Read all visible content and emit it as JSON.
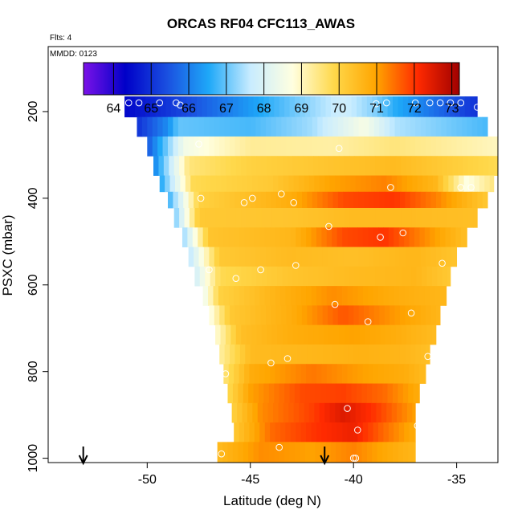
{
  "title": "ORCAS RF04 CFC113_AWAS",
  "notes": {
    "flights": "Flts: 4",
    "mmdd": "MMDD: 0123"
  },
  "chart_data": {
    "type": "heatmap",
    "title": "ORCAS RF04 CFC113_AWAS",
    "xlabel": "Latitude (deg N)",
    "ylabel": "PSXC (mbar)",
    "xlim": [
      -54.8,
      -33
    ],
    "ylim": [
      1010,
      50
    ],
    "xticks": [
      -50,
      -45,
      -40,
      -35
    ],
    "yticks": [
      200,
      400,
      600,
      800,
      1000
    ],
    "colorbar": {
      "min": 63.2,
      "max": 73.2,
      "ticks": [
        64,
        65,
        66,
        67,
        68,
        69,
        70,
        71,
        72,
        73
      ],
      "stops": [
        "#7b12e8",
        "#0000c8",
        "#1a4fe0",
        "#1ea8f8",
        "#c8ecff",
        "#ffffe0",
        "#ffd84a",
        "#ffa500",
        "#ff2a00",
        "#a00000"
      ]
    },
    "pressure_bands": [
      {
        "p": 190,
        "lat_min": -51.1,
        "lat_max": -34.0,
        "profile": [
          [
            -51.1,
            64.4
          ],
          [
            -48.0,
            65.4
          ],
          [
            -44.0,
            66.7
          ],
          [
            -40.5,
            67.8
          ],
          [
            -39.0,
            67.2
          ],
          [
            -38.0,
            66.6
          ],
          [
            -34.0,
            65.0
          ]
        ]
      },
      {
        "p": 235,
        "lat_min": -50.5,
        "lat_max": -33.5,
        "profile": [
          [
            -50.5,
            65.0
          ],
          [
            -49.0,
            66.2
          ],
          [
            -48.5,
            67.0
          ],
          [
            -45.0,
            66.8
          ],
          [
            -42.0,
            67.4
          ],
          [
            -39.5,
            68.6
          ],
          [
            -38.0,
            67.5
          ],
          [
            -33.5,
            66.8
          ]
        ]
      },
      {
        "p": 280,
        "lat_min": -50.0,
        "lat_max": -33.0,
        "profile": [
          [
            -50.0,
            65.5
          ],
          [
            -48.2,
            68.5
          ],
          [
            -45.0,
            69.3
          ],
          [
            -41.0,
            69.2
          ],
          [
            -38.0,
            69.5
          ],
          [
            -33.0,
            69.0
          ]
        ]
      },
      {
        "p": 325,
        "lat_min": -49.7,
        "lat_max": -33.0,
        "profile": [
          [
            -49.7,
            66.0
          ],
          [
            -48.0,
            69.5
          ],
          [
            -45.0,
            70.0
          ],
          [
            -41.0,
            70.3
          ],
          [
            -38.0,
            70.5
          ],
          [
            -33.0,
            69.8
          ]
        ]
      },
      {
        "p": 370,
        "lat_min": -49.4,
        "lat_max": -33.2,
        "profile": [
          [
            -49.4,
            66.4
          ],
          [
            -47.8,
            69.8
          ],
          [
            -44.0,
            70.2
          ],
          [
            -41.0,
            71.0
          ],
          [
            -38.5,
            71.3
          ],
          [
            -36.0,
            70.6
          ],
          [
            -34.5,
            68.7
          ],
          [
            -33.2,
            69.5
          ]
        ]
      },
      {
        "p": 400,
        "lat_min": -49.0,
        "lat_max": -33.5,
        "profile": [
          [
            -49.0,
            66.6
          ],
          [
            -47.5,
            70.0
          ],
          [
            -43.0,
            70.8
          ],
          [
            -40.5,
            71.8
          ],
          [
            -38.0,
            72.0
          ],
          [
            -36.0,
            71.3
          ],
          [
            -33.5,
            70.2
          ]
        ]
      },
      {
        "p": 445,
        "lat_min": -48.7,
        "lat_max": -34.0,
        "profile": [
          [
            -48.7,
            67.0
          ],
          [
            -47.5,
            70.2
          ],
          [
            -43.0,
            70.3
          ],
          [
            -40.0,
            70.5
          ],
          [
            -37.5,
            70.5
          ],
          [
            -34.0,
            70.4
          ]
        ]
      },
      {
        "p": 490,
        "lat_min": -48.3,
        "lat_max": -34.5,
        "profile": [
          [
            -48.3,
            67.2
          ],
          [
            -47.0,
            70.3
          ],
          [
            -43.0,
            70.6
          ],
          [
            -40.5,
            71.8
          ],
          [
            -38.5,
            72.0
          ],
          [
            -36.5,
            71.2
          ],
          [
            -34.5,
            70.4
          ]
        ]
      },
      {
        "p": 535,
        "lat_min": -48.0,
        "lat_max": -35.0,
        "profile": [
          [
            -48.0,
            67.5
          ],
          [
            -46.5,
            70.2
          ],
          [
            -43.0,
            70.5
          ],
          [
            -40.0,
            70.4
          ],
          [
            -37.0,
            70.6
          ],
          [
            -35.0,
            70.3
          ]
        ]
      },
      {
        "p": 580,
        "lat_min": -47.7,
        "lat_max": -35.3,
        "profile": [
          [
            -47.7,
            67.8
          ],
          [
            -46.5,
            69.8
          ],
          [
            -43.0,
            70.3
          ],
          [
            -40.0,
            70.5
          ],
          [
            -37.0,
            70.6
          ],
          [
            -35.3,
            70.2
          ]
        ]
      },
      {
        "p": 625,
        "lat_min": -47.3,
        "lat_max": -35.5,
        "profile": [
          [
            -47.3,
            68.3
          ],
          [
            -46.5,
            70.0
          ],
          [
            -44.0,
            70.6
          ],
          [
            -41.0,
            71.2
          ],
          [
            -38.0,
            70.8
          ],
          [
            -35.5,
            70.6
          ]
        ]
      },
      {
        "p": 670,
        "lat_min": -47.0,
        "lat_max": -35.8,
        "profile": [
          [
            -47.0,
            68.6
          ],
          [
            -46.0,
            70.2
          ],
          [
            -43.0,
            70.8
          ],
          [
            -40.5,
            71.7
          ],
          [
            -38.5,
            71.2
          ],
          [
            -35.8,
            70.6
          ]
        ]
      },
      {
        "p": 715,
        "lat_min": -46.7,
        "lat_max": -36.0,
        "profile": [
          [
            -46.7,
            68.8
          ],
          [
            -45.5,
            70.4
          ],
          [
            -43.0,
            70.8
          ],
          [
            -40.0,
            71.0
          ],
          [
            -38.0,
            70.8
          ],
          [
            -36.0,
            70.5
          ]
        ]
      },
      {
        "p": 760,
        "lat_min": -46.5,
        "lat_max": -36.3,
        "profile": [
          [
            -46.5,
            69.2
          ],
          [
            -45.0,
            70.5
          ],
          [
            -42.0,
            70.6
          ],
          [
            -39.5,
            70.7
          ],
          [
            -37.5,
            70.6
          ],
          [
            -36.3,
            70.4
          ]
        ]
      },
      {
        "p": 805,
        "lat_min": -46.3,
        "lat_max": -36.5,
        "profile": [
          [
            -46.3,
            69.5
          ],
          [
            -45.0,
            70.8
          ],
          [
            -42.0,
            71.4
          ],
          [
            -39.5,
            71.0
          ],
          [
            -37.5,
            70.8
          ],
          [
            -36.5,
            70.5
          ]
        ]
      },
      {
        "p": 850,
        "lat_min": -46.1,
        "lat_max": -36.8,
        "profile": [
          [
            -46.1,
            69.8
          ],
          [
            -45.0,
            71.0
          ],
          [
            -42.5,
            71.8
          ],
          [
            -40.5,
            71.9
          ],
          [
            -38.5,
            71.5
          ],
          [
            -36.8,
            70.8
          ]
        ]
      },
      {
        "p": 895,
        "lat_min": -45.9,
        "lat_max": -37.0,
        "profile": [
          [
            -45.9,
            70.0
          ],
          [
            -44.5,
            71.2
          ],
          [
            -42.0,
            71.9
          ],
          [
            -40.5,
            72.5
          ],
          [
            -39.0,
            72.0
          ],
          [
            -37.0,
            71.0
          ]
        ]
      },
      {
        "p": 940,
        "lat_min": -45.8,
        "lat_max": -37.0,
        "profile": [
          [
            -45.8,
            70.2
          ],
          [
            -44.0,
            71.5
          ],
          [
            -42.0,
            72.0
          ],
          [
            -40.0,
            72.3
          ],
          [
            -38.5,
            71.5
          ],
          [
            -37.0,
            70.8
          ]
        ]
      },
      {
        "p": 985,
        "lat_min": -46.6,
        "lat_max": -37.0,
        "profile": [
          [
            -46.6,
            70.5
          ],
          [
            -44.5,
            71.2
          ],
          [
            -42.0,
            71.0
          ],
          [
            -40.0,
            71.3
          ],
          [
            -38.0,
            70.8
          ],
          [
            -37.0,
            70.6
          ]
        ]
      }
    ],
    "samples": [
      [
        -50.9,
        180
      ],
      [
        -50.4,
        180
      ],
      [
        -49.4,
        180
      ],
      [
        -48.6,
        180
      ],
      [
        -48.4,
        185
      ],
      [
        -38.9,
        182
      ],
      [
        -38.4,
        180
      ],
      [
        -37.0,
        180
      ],
      [
        -36.3,
        180
      ],
      [
        -35.8,
        180
      ],
      [
        -35.3,
        180
      ],
      [
        -34.8,
        180
      ],
      [
        -34.0,
        190
      ],
      [
        -47.5,
        275
      ],
      [
        -40.7,
        285
      ],
      [
        -47.4,
        400
      ],
      [
        -45.3,
        410
      ],
      [
        -44.9,
        400
      ],
      [
        -43.5,
        390
      ],
      [
        -42.9,
        410
      ],
      [
        -38.2,
        375
      ],
      [
        -34.8,
        375
      ],
      [
        -34.3,
        375
      ],
      [
        -41.2,
        465
      ],
      [
        -38.7,
        490
      ],
      [
        -37.6,
        480
      ],
      [
        -47.0,
        565
      ],
      [
        -45.7,
        585
      ],
      [
        -44.5,
        565
      ],
      [
        -42.8,
        555
      ],
      [
        -35.7,
        550
      ],
      [
        -40.9,
        645
      ],
      [
        -39.3,
        685
      ],
      [
        -37.2,
        665
      ],
      [
        -46.7,
        780
      ],
      [
        -46.2,
        805
      ],
      [
        -44.0,
        780
      ],
      [
        -43.2,
        770
      ],
      [
        -36.4,
        765
      ],
      [
        -40.3,
        885
      ],
      [
        -39.8,
        935
      ],
      [
        -36.9,
        925
      ],
      [
        -46.4,
        990
      ],
      [
        -43.6,
        975
      ],
      [
        -39.9,
        1000
      ],
      [
        -40.0,
        1000
      ],
      [
        -36.7,
        1000
      ]
    ],
    "markers": [
      {
        "lat": -53.1,
        "label": "arrow"
      },
      {
        "lat": -41.4,
        "label": "arrow"
      }
    ]
  }
}
